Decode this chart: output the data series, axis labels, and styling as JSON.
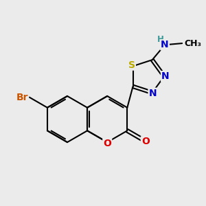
{
  "bg_color": "#ebebeb",
  "bond_color": "#000000",
  "bond_width": 1.5,
  "atom_colors": {
    "C": "#000000",
    "N": "#0000cc",
    "O": "#dd0000",
    "S": "#bbaa00",
    "Br": "#cc5500",
    "H": "#3d9898"
  },
  "font_size": 10,
  "small_font_size": 8.5
}
